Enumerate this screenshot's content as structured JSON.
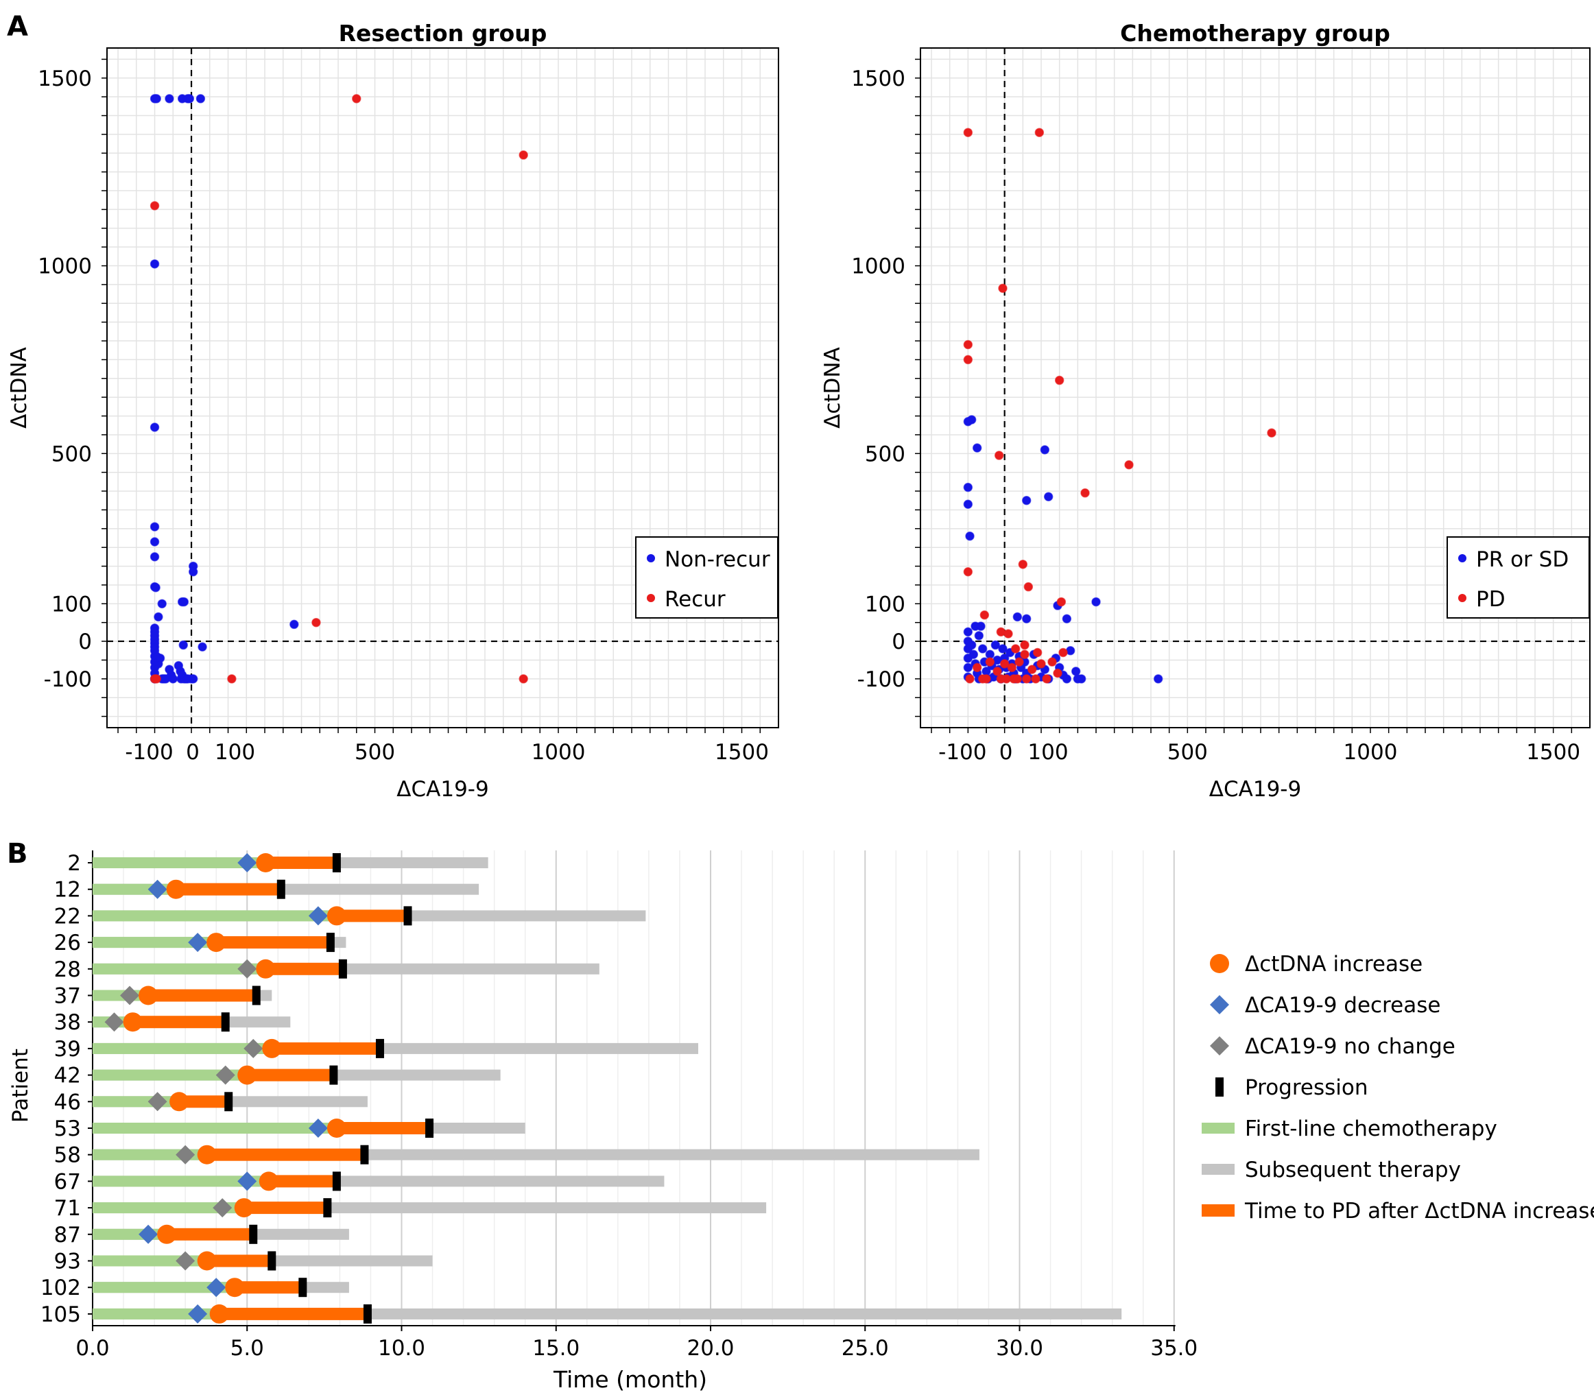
{
  "panel_labels": {
    "a": "A",
    "b": "B"
  },
  "colors": {
    "blue": "#1515e6",
    "red": "#e81c1c",
    "green": "#a8d48e",
    "gray": "#c4c4c4",
    "orange": "#ff6a00",
    "diamond_blue": "#4472c4",
    "diamond_gray": "#808080",
    "grid": "#e3e3e3",
    "grid_major": "#cfcfcf"
  },
  "chart_data": [
    {
      "type": "scatter",
      "title": "Resection group",
      "xlabel": "ΔCA19-9",
      "ylabel": "ΔctDNA",
      "xlim": [
        -230,
        1600
      ],
      "ylim": [
        -230,
        1580
      ],
      "xticks": [
        -100,
        0,
        100,
        500,
        1000,
        1500
      ],
      "xtick_labels": [
        "-100",
        "0",
        "100",
        "500",
        "1000",
        "1500"
      ],
      "yticks": [
        -100,
        0,
        100,
        500,
        1000,
        1500
      ],
      "ytick_labels": [
        "-100",
        "0",
        "100",
        "500",
        "1000",
        "1500"
      ],
      "reference_lines": {
        "x": 0,
        "y": 0
      },
      "grid": true,
      "legend_position": "right",
      "series": [
        {
          "name": "Non-recur",
          "color": "#1515e6",
          "points": [
            [
              -100,
              1445
            ],
            [
              -95,
              1445
            ],
            [
              -60,
              1445
            ],
            [
              -25,
              1445
            ],
            [
              -10,
              1445
            ],
            [
              -5,
              1445
            ],
            [
              25,
              1445
            ],
            [
              -100,
              1005
            ],
            [
              -100,
              570
            ],
            [
              -100,
              305
            ],
            [
              -100,
              265
            ],
            [
              -100,
              225
            ],
            [
              -100,
              145
            ],
            [
              -97,
              143
            ],
            [
              -80,
              100
            ],
            [
              -90,
              65
            ],
            [
              5,
              200
            ],
            [
              5,
              185
            ],
            [
              -25,
              105
            ],
            [
              -20,
              105
            ],
            [
              -100,
              35
            ],
            [
              -100,
              25
            ],
            [
              -100,
              15
            ],
            [
              -100,
              5
            ],
            [
              -100,
              -5
            ],
            [
              -100,
              -15
            ],
            [
              -100,
              -25
            ],
            [
              -100,
              -40
            ],
            [
              -100,
              -55
            ],
            [
              -100,
              -70
            ],
            [
              -100,
              -85
            ],
            [
              -100,
              -100
            ],
            [
              -95,
              -40
            ],
            [
              -90,
              -60
            ],
            [
              -85,
              -45
            ],
            [
              -80,
              -100
            ],
            [
              -75,
              -100
            ],
            [
              -70,
              -100
            ],
            [
              -60,
              -75
            ],
            [
              -55,
              -90
            ],
            [
              -50,
              -100
            ],
            [
              -35,
              -65
            ],
            [
              -30,
              -80
            ],
            [
              -28,
              -100
            ],
            [
              -25,
              -90
            ],
            [
              -22,
              -10
            ],
            [
              -20,
              -100
            ],
            [
              -15,
              -100
            ],
            [
              -10,
              -100
            ],
            [
              0,
              -100
            ],
            [
              5,
              -100
            ],
            [
              30,
              -15
            ],
            [
              280,
              45
            ]
          ]
        },
        {
          "name": "Recur",
          "color": "#e81c1c",
          "points": [
            [
              450,
              1445
            ],
            [
              905,
              1295
            ],
            [
              -100,
              1160
            ],
            [
              -100,
              -100
            ],
            [
              -95,
              -100
            ],
            [
              110,
              -100
            ],
            [
              340,
              50
            ],
            [
              905,
              -100
            ]
          ]
        }
      ]
    },
    {
      "type": "scatter",
      "title": "Chemotherapy group",
      "xlabel": "ΔCA19-9",
      "ylabel": "ΔctDNA",
      "xlim": [
        -230,
        1600
      ],
      "ylim": [
        -230,
        1580
      ],
      "xticks": [
        -100,
        0,
        100,
        500,
        1000,
        1500
      ],
      "xtick_labels": [
        "-100",
        "0",
        "100",
        "500",
        "1000",
        "1500"
      ],
      "yticks": [
        -100,
        0,
        100,
        500,
        1000,
        1500
      ],
      "ytick_labels": [
        "-100",
        "0",
        "100",
        "500",
        "1000",
        "1500"
      ],
      "reference_lines": {
        "x": 0,
        "y": 0
      },
      "grid": true,
      "legend_position": "right",
      "series": [
        {
          "name": "PR or SD",
          "color": "#1515e6",
          "points": [
            [
              -100,
              585
            ],
            [
              -90,
              590
            ],
            [
              -75,
              515
            ],
            [
              -100,
              410
            ],
            [
              -100,
              365
            ],
            [
              -95,
              280
            ],
            [
              110,
              510
            ],
            [
              120,
              385
            ],
            [
              250,
              105
            ],
            [
              60,
              375
            ],
            [
              -80,
              40
            ],
            [
              -65,
              40
            ],
            [
              -70,
              15
            ],
            [
              -100,
              25
            ],
            [
              -100,
              0
            ],
            [
              -100,
              -20
            ],
            [
              -100,
              -45
            ],
            [
              -100,
              -70
            ],
            [
              -100,
              -95
            ],
            [
              -90,
              -10
            ],
            [
              -85,
              -35
            ],
            [
              -80,
              -60
            ],
            [
              -75,
              -85
            ],
            [
              -70,
              -100
            ],
            [
              -60,
              -20
            ],
            [
              -55,
              -55
            ],
            [
              -50,
              -80
            ],
            [
              -45,
              -100
            ],
            [
              -40,
              -35
            ],
            [
              -35,
              -65
            ],
            [
              -30,
              -95
            ],
            [
              -25,
              -10
            ],
            [
              -20,
              -50
            ],
            [
              -15,
              -75
            ],
            [
              -10,
              -100
            ],
            [
              -5,
              -20
            ],
            [
              0,
              -45
            ],
            [
              5,
              -70
            ],
            [
              10,
              -95
            ],
            [
              15,
              -30
            ],
            [
              20,
              -60
            ],
            [
              25,
              -85
            ],
            [
              30,
              -100
            ],
            [
              40,
              -40
            ],
            [
              45,
              -70
            ],
            [
              50,
              -100
            ],
            [
              55,
              -55
            ],
            [
              60,
              -85
            ],
            [
              70,
              -100
            ],
            [
              80,
              -35
            ],
            [
              90,
              -65
            ],
            [
              100,
              -95
            ],
            [
              110,
              -75
            ],
            [
              120,
              -100
            ],
            [
              140,
              -45
            ],
            [
              150,
              -70
            ],
            [
              160,
              -90
            ],
            [
              170,
              -100
            ],
            [
              180,
              -25
            ],
            [
              195,
              -80
            ],
            [
              210,
              -100
            ],
            [
              200,
              -100
            ],
            [
              420,
              -100
            ],
            [
              35,
              65
            ],
            [
              60,
              60
            ],
            [
              145,
              95
            ],
            [
              170,
              60
            ]
          ]
        },
        {
          "name": "PD",
          "color": "#e81c1c",
          "points": [
            [
              -100,
              1355
            ],
            [
              95,
              1355
            ],
            [
              -5,
              940
            ],
            [
              -100,
              790
            ],
            [
              -100,
              750
            ],
            [
              150,
              695
            ],
            [
              -15,
              495
            ],
            [
              730,
              555
            ],
            [
              340,
              470
            ],
            [
              220,
              395
            ],
            [
              50,
              205
            ],
            [
              65,
              145
            ],
            [
              155,
              105
            ],
            [
              -100,
              185
            ],
            [
              -55,
              70
            ],
            [
              -10,
              25
            ],
            [
              10,
              20
            ],
            [
              30,
              -20
            ],
            [
              55,
              -35
            ],
            [
              160,
              -30
            ],
            [
              -95,
              -100
            ],
            [
              -60,
              -100
            ],
            [
              -50,
              -100
            ],
            [
              -10,
              -100
            ],
            [
              5,
              -100
            ],
            [
              25,
              -100
            ],
            [
              35,
              -100
            ],
            [
              60,
              -100
            ],
            [
              85,
              -100
            ],
            [
              115,
              -100
            ],
            [
              -75,
              -70
            ],
            [
              -40,
              -55
            ],
            [
              -20,
              -80
            ],
            [
              20,
              -70
            ],
            [
              40,
              -55
            ],
            [
              75,
              -75
            ],
            [
              100,
              -60
            ],
            [
              90,
              -30
            ],
            [
              130,
              -55
            ],
            [
              145,
              -85
            ],
            [
              55,
              -10
            ],
            [
              0,
              -60
            ]
          ]
        }
      ]
    },
    {
      "type": "bar",
      "orientation": "horizontal",
      "subtype": "swimmer",
      "xlabel": "Time (month)",
      "ylabel": "Patient",
      "xlim": [
        0,
        35
      ],
      "xticks": [
        0,
        5,
        10,
        15,
        20,
        25,
        30,
        35
      ],
      "xtick_labels": [
        "0.0",
        "5.0",
        "10.0",
        "15.0",
        "20.0",
        "25.0",
        "30.0",
        "35.0"
      ],
      "grid": true,
      "legend_position": "right",
      "legend": [
        {
          "key": "ctdna",
          "label": "ΔctDNA increase"
        },
        {
          "key": "ca_dec",
          "label": "ΔCA19-9 decrease"
        },
        {
          "key": "ca_nc",
          "label": "ΔCA19-9 no change"
        },
        {
          "key": "prog",
          "label": "Progression"
        },
        {
          "key": "first",
          "label": "First-line chemotherapy"
        },
        {
          "key": "subseq",
          "label": "Subsequent therapy"
        },
        {
          "key": "ttpd",
          "label": "Time to PD after ΔctDNA increase"
        }
      ],
      "patients": [
        {
          "id": "2",
          "ca19_9": 5.0,
          "ca_change": "decrease",
          "ctdna": 5.6,
          "pd": 7.9,
          "end": 12.8
        },
        {
          "id": "12",
          "ca19_9": 2.1,
          "ca_change": "decrease",
          "ctdna": 2.7,
          "pd": 6.1,
          "end": 12.5
        },
        {
          "id": "22",
          "ca19_9": 7.3,
          "ca_change": "decrease",
          "ctdna": 7.9,
          "pd": 10.2,
          "end": 17.9
        },
        {
          "id": "26",
          "ca19_9": 3.4,
          "ca_change": "decrease",
          "ctdna": 4.0,
          "pd": 7.7,
          "end": 8.2
        },
        {
          "id": "28",
          "ca19_9": 5.0,
          "ca_change": "no change",
          "ctdna": 5.6,
          "pd": 8.1,
          "end": 16.4
        },
        {
          "id": "37",
          "ca19_9": 1.2,
          "ca_change": "no change",
          "ctdna": 1.8,
          "pd": 5.3,
          "end": 5.8
        },
        {
          "id": "38",
          "ca19_9": 0.7,
          "ca_change": "no change",
          "ctdna": 1.3,
          "pd": 4.3,
          "end": 6.4
        },
        {
          "id": "39",
          "ca19_9": 5.2,
          "ca_change": "no change",
          "ctdna": 5.8,
          "pd": 9.3,
          "end": 19.6
        },
        {
          "id": "42",
          "ca19_9": 4.3,
          "ca_change": "no change",
          "ctdna": 5.0,
          "pd": 7.8,
          "end": 13.2
        },
        {
          "id": "46",
          "ca19_9": 2.1,
          "ca_change": "no change",
          "ctdna": 2.8,
          "pd": 4.4,
          "end": 8.9
        },
        {
          "id": "53",
          "ca19_9": 7.3,
          "ca_change": "decrease",
          "ctdna": 7.9,
          "pd": 10.9,
          "end": 14.0
        },
        {
          "id": "58",
          "ca19_9": 3.0,
          "ca_change": "no change",
          "ctdna": 3.7,
          "pd": 8.8,
          "end": 28.7
        },
        {
          "id": "67",
          "ca19_9": 5.0,
          "ca_change": "decrease",
          "ctdna": 5.7,
          "pd": 7.9,
          "end": 18.5
        },
        {
          "id": "71",
          "ca19_9": 4.2,
          "ca_change": "no change",
          "ctdna": 4.9,
          "pd": 7.6,
          "end": 21.8
        },
        {
          "id": "87",
          "ca19_9": 1.8,
          "ca_change": "decrease",
          "ctdna": 2.4,
          "pd": 5.2,
          "end": 8.3
        },
        {
          "id": "93",
          "ca19_9": 3.0,
          "ca_change": "no change",
          "ctdna": 3.7,
          "pd": 5.8,
          "end": 11.0
        },
        {
          "id": "102",
          "ca19_9": 4.0,
          "ca_change": "decrease",
          "ctdna": 4.6,
          "pd": 6.8,
          "end": 8.3
        },
        {
          "id": "105",
          "ca19_9": 3.4,
          "ca_change": "decrease",
          "ctdna": 4.1,
          "pd": 8.9,
          "end": 33.3
        }
      ]
    }
  ]
}
